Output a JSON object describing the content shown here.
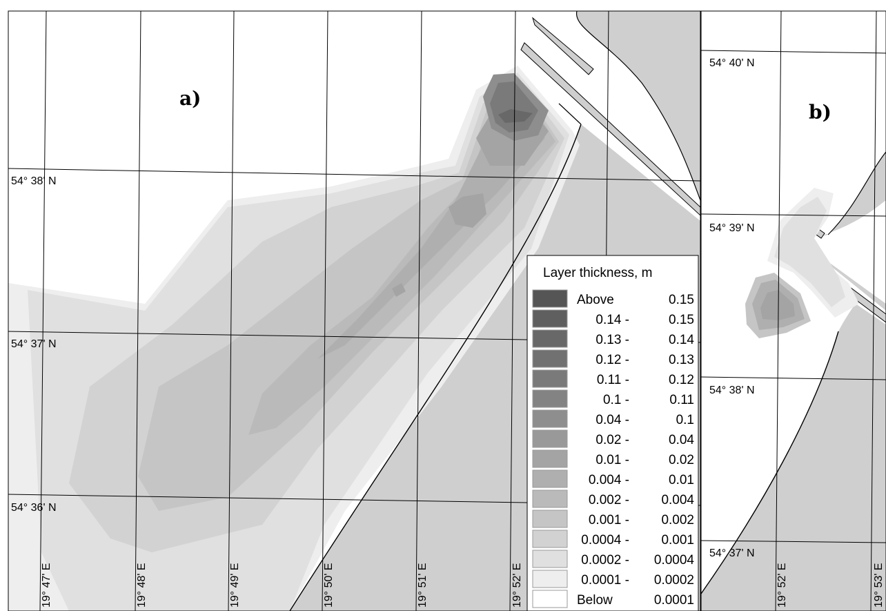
{
  "panels": [
    {
      "letter": "a)",
      "lat_labels": [
        "54° 38' N",
        "54° 37' N",
        "54° 36' N"
      ],
      "lon_labels": [
        "19° 47' E",
        "19° 48' E",
        "19° 49' E",
        "19° 50' E",
        "19° 51' E",
        "19° 52' E"
      ]
    },
    {
      "letter": "b)",
      "lat_labels": [
        "54° 40' N",
        "54° 39' N",
        "54° 38' N",
        "54° 37' N"
      ],
      "lon_labels": [
        "19° 52' E",
        "19° 53' E"
      ]
    }
  ],
  "legend": {
    "title": "Layer thickness, m",
    "classes": [
      {
        "from": "Above",
        "to": "0.15",
        "color": "#555555"
      },
      {
        "from": "0.14 -",
        "to": "0.15",
        "color": "#5f5f5f"
      },
      {
        "from": "0.13 -",
        "to": "0.14",
        "color": "#686868"
      },
      {
        "from": "0.12 -",
        "to": "0.13",
        "color": "#717171"
      },
      {
        "from": "0.11 -",
        "to": "0.12",
        "color": "#7a7a7a"
      },
      {
        "from": "0.1 -",
        "to": "0.11",
        "color": "#838383"
      },
      {
        "from": "0.04 -",
        "to": "0.1",
        "color": "#8e8e8e"
      },
      {
        "from": "0.02 -",
        "to": "0.04",
        "color": "#999999"
      },
      {
        "from": "0.01 -",
        "to": "0.02",
        "color": "#a4a4a4"
      },
      {
        "from": "0.004 -",
        "to": "0.01",
        "color": "#afafaf"
      },
      {
        "from": "0.002 -",
        "to": "0.004",
        "color": "#bababa"
      },
      {
        "from": "0.001 -",
        "to": "0.002",
        "color": "#c5c5c5"
      },
      {
        "from": "0.0004 -",
        "to": "0.001",
        "color": "#d2d2d2"
      },
      {
        "from": "0.0002 -",
        "to": "0.0004",
        "color": "#e0e0e0"
      },
      {
        "from": "0.0001 -",
        "to": "0.0002",
        "color": "#eeeeee"
      },
      {
        "from": "Below",
        "to": "0.0001",
        "color": "#ffffff"
      }
    ]
  },
  "colors": {
    "land": "#cfcfcf",
    "water": "#ffffff",
    "grid": "#000000"
  }
}
